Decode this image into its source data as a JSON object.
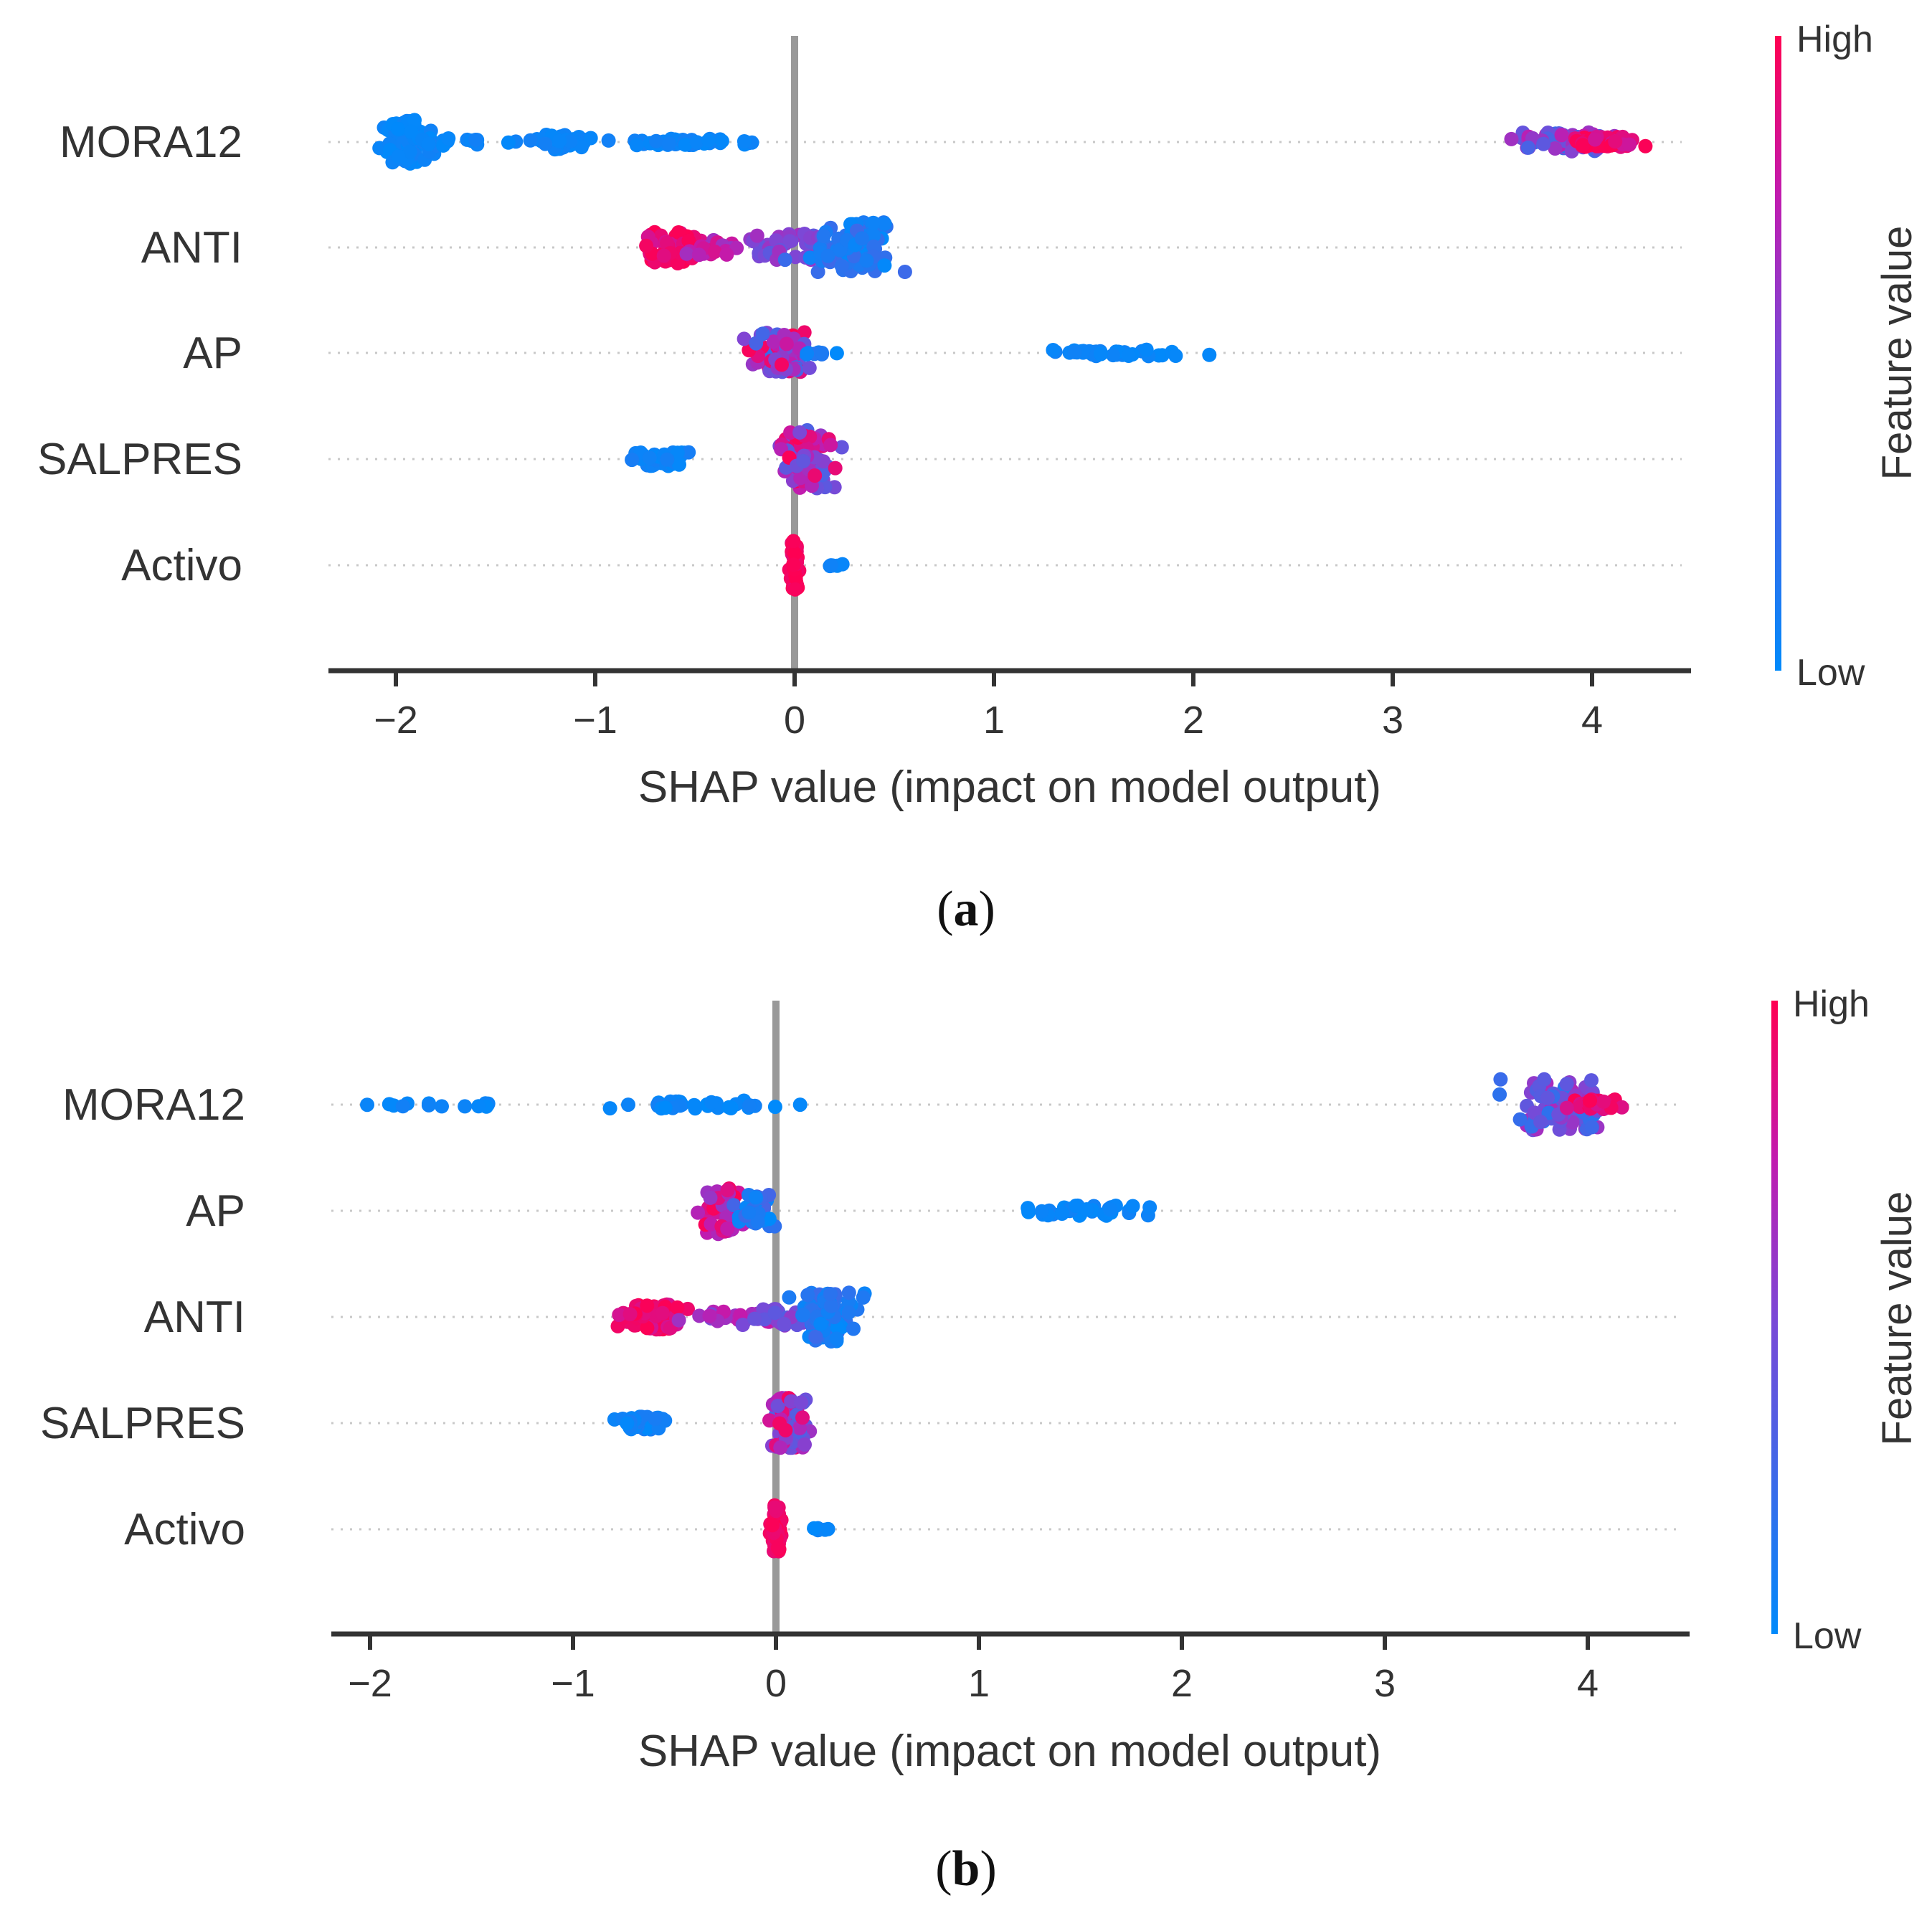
{
  "chart_data": [
    {
      "type": "scatter",
      "subtype": "shap-beeswarm",
      "panel_label": "a",
      "features": [
        "MORA12",
        "ANTI",
        "AP",
        "SALPRES",
        "Activo"
      ],
      "xlabel": "SHAP value (impact on model output)",
      "xticks": [
        -2,
        -1,
        0,
        1,
        2,
        3,
        4
      ],
      "xtick_labels": [
        "−2",
        "−1",
        "0",
        "1",
        "2",
        "3",
        "4"
      ],
      "xlim": [
        -2.3,
        4.5
      ],
      "colorbar": {
        "title": "Feature value",
        "high_label": "High",
        "low_label": "Low",
        "low_color": "#1E88E5",
        "high_color": "#FF0D57"
      },
      "clusters": {
        "MORA12": [
          {
            "center": -1.95,
            "spread": 0.05,
            "n": 70,
            "width": 0.42,
            "fv": [
              0,
              0.08
            ]
          },
          {
            "center": -1.8,
            "spread": 0.08,
            "n": 12,
            "width": 0.08,
            "fv": [
              0,
              0.08
            ]
          },
          {
            "center": -1.15,
            "spread": 0.08,
            "n": 30,
            "width": 0.14,
            "fv": [
              0,
              0.08
            ]
          },
          {
            "center": -1.4,
            "spread": 0.1,
            "n": 10,
            "width": 0.05,
            "fv": [
              0,
              0.08
            ]
          },
          {
            "center": -0.5,
            "spread": 0.2,
            "n": 40,
            "width": 0.06,
            "fv": [
              0,
              0.08
            ]
          },
          {
            "center": 3.88,
            "spread": 0.12,
            "n": 70,
            "width": 0.18,
            "fv": [
              0.15,
              0.75
            ]
          },
          {
            "center": 4.05,
            "spread": 0.08,
            "n": 45,
            "width": 0.1,
            "fv": [
              0.8,
              1.0
            ]
          }
        ],
        "ANTI": [
          {
            "center": -0.62,
            "spread": 0.07,
            "n": 70,
            "width": 0.3,
            "fv": [
              0.82,
              1.0
            ]
          },
          {
            "center": -0.4,
            "spread": 0.08,
            "n": 20,
            "width": 0.14,
            "fv": [
              0.6,
              0.85
            ]
          },
          {
            "center": -0.05,
            "spread": 0.14,
            "n": 45,
            "width": 0.26,
            "fv": [
              0.35,
              0.65
            ]
          },
          {
            "center": 0.3,
            "spread": 0.1,
            "n": 100,
            "width": 0.48,
            "fv": [
              0,
              0.25
            ]
          }
        ],
        "AP": [
          {
            "center": -0.08,
            "spread": 0.07,
            "n": 60,
            "width": 0.4,
            "fv": [
              0.2,
              1.0
            ]
          },
          {
            "center": 0.1,
            "spread": 0.06,
            "n": 8,
            "width": 0.03,
            "fv": [
              0,
              0.15
            ]
          },
          {
            "center": 1.6,
            "spread": 0.15,
            "n": 35,
            "width": 0.06,
            "fv": [
              0,
              0.08
            ]
          }
        ],
        "SALPRES": [
          {
            "center": -0.68,
            "spread": 0.08,
            "n": 45,
            "width": 0.14,
            "fv": [
              0,
              0.1
            ]
          },
          {
            "center": 0.06,
            "spread": 0.06,
            "n": 100,
            "width": 0.56,
            "fv": [
              0.3,
              1.0
            ]
          }
        ],
        "Activo": [
          {
            "center": 0.0,
            "spread": 0.01,
            "n": 55,
            "width": 0.46,
            "fv": [
              0.9,
              1.0
            ]
          },
          {
            "center": 0.18,
            "spread": 0.04,
            "n": 5,
            "width": 0.02,
            "fv": [
              0,
              0.08
            ]
          }
        ]
      }
    },
    {
      "type": "scatter",
      "subtype": "shap-beeswarm",
      "panel_label": "b",
      "features": [
        "MORA12",
        "AP",
        "ANTI",
        "SALPRES",
        "Activo"
      ],
      "xlabel": "SHAP value (impact on model output)",
      "xticks": [
        -2,
        -1,
        0,
        1,
        2,
        3,
        4
      ],
      "xtick_labels": [
        "−2",
        "−1",
        "0",
        "1",
        "2",
        "3",
        "4"
      ],
      "xlim": [
        -2.2,
        4.5
      ],
      "colorbar": {
        "title": "Feature value",
        "high_label": "High",
        "low_label": "Low",
        "low_color": "#1E88E5",
        "high_color": "#FF0D57"
      },
      "clusters": {
        "MORA12": [
          {
            "center": -1.8,
            "spread": 0.08,
            "n": 8,
            "width": 0.04,
            "fv": [
              0,
              0.08
            ]
          },
          {
            "center": -1.45,
            "spread": 0.05,
            "n": 6,
            "width": 0.04,
            "fv": [
              0,
              0.08
            ]
          },
          {
            "center": -0.4,
            "spread": 0.18,
            "n": 35,
            "width": 0.08,
            "fv": [
              0,
              0.08
            ]
          },
          {
            "center": 3.85,
            "spread": 0.1,
            "n": 110,
            "width": 0.48,
            "fv": [
              0.15,
              0.7
            ]
          },
          {
            "center": 4.05,
            "spread": 0.07,
            "n": 35,
            "width": 0.1,
            "fv": [
              0.8,
              1.0
            ]
          }
        ],
        "AP": [
          {
            "center": -0.25,
            "spread": 0.05,
            "n": 40,
            "width": 0.44,
            "fv": [
              0.6,
              1.0
            ]
          },
          {
            "center": -0.1,
            "spread": 0.07,
            "n": 30,
            "width": 0.3,
            "fv": [
              0,
              0.3
            ]
          },
          {
            "center": 1.55,
            "spread": 0.14,
            "n": 35,
            "width": 0.1,
            "fv": [
              0,
              0.08
            ]
          }
        ],
        "ANTI": [
          {
            "center": -0.6,
            "spread": 0.08,
            "n": 70,
            "width": 0.24,
            "fv": [
              0.82,
              1.0
            ]
          },
          {
            "center": -0.2,
            "spread": 0.12,
            "n": 30,
            "width": 0.1,
            "fv": [
              0.5,
              0.8
            ]
          },
          {
            "center": 0.0,
            "spread": 0.08,
            "n": 30,
            "width": 0.16,
            "fv": [
              0.3,
              0.6
            ]
          },
          {
            "center": 0.25,
            "spread": 0.07,
            "n": 90,
            "width": 0.48,
            "fv": [
              0,
              0.25
            ]
          }
        ],
        "SALPRES": [
          {
            "center": -0.65,
            "spread": 0.07,
            "n": 40,
            "width": 0.12,
            "fv": [
              0,
              0.1
            ]
          },
          {
            "center": 0.06,
            "spread": 0.05,
            "n": 80,
            "width": 0.48,
            "fv": [
              0.3,
              1.0
            ]
          }
        ],
        "Activo": [
          {
            "center": 0.0,
            "spread": 0.01,
            "n": 55,
            "width": 0.46,
            "fv": [
              0.9,
              1.0
            ]
          },
          {
            "center": 0.18,
            "spread": 0.04,
            "n": 5,
            "width": 0.02,
            "fv": [
              0,
              0.08
            ]
          }
        ]
      }
    }
  ]
}
